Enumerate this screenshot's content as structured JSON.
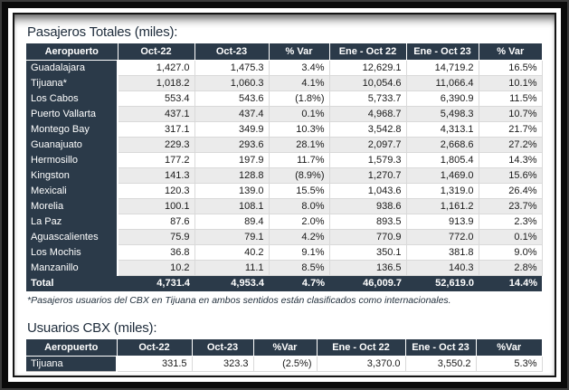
{
  "passengers_table": {
    "title": "Pasajeros Totales (miles):",
    "headers": [
      "Aeropuerto",
      "Oct-22",
      "Oct-23",
      "% Var",
      "Ene - Oct 22",
      "Ene - Oct 23",
      "% Var"
    ],
    "rows": [
      [
        "Guadalajara",
        "1,427.0",
        "1,475.3",
        "3.4%",
        "12,629.1",
        "14,719.2",
        "16.5%"
      ],
      [
        "Tijuana*",
        "1,018.2",
        "1,060.3",
        "4.1%",
        "10,054.6",
        "11,066.4",
        "10.1%"
      ],
      [
        "Los Cabos",
        "553.4",
        "543.6",
        "(1.8%)",
        "5,733.7",
        "6,390.9",
        "11.5%"
      ],
      [
        "Puerto Vallarta",
        "437.1",
        "437.4",
        "0.1%",
        "4,968.7",
        "5,498.3",
        "10.7%"
      ],
      [
        "Montego Bay",
        "317.1",
        "349.9",
        "10.3%",
        "3,542.8",
        "4,313.1",
        "21.7%"
      ],
      [
        "Guanajuato",
        "229.3",
        "293.6",
        "28.1%",
        "2,097.7",
        "2,668.6",
        "27.2%"
      ],
      [
        "Hermosillo",
        "177.2",
        "197.9",
        "11.7%",
        "1,579.3",
        "1,805.4",
        "14.3%"
      ],
      [
        "Kingston",
        "141.3",
        "128.8",
        "(8.9%)",
        "1,270.7",
        "1,469.0",
        "15.6%"
      ],
      [
        "Mexicali",
        "120.3",
        "139.0",
        "15.5%",
        "1,043.6",
        "1,319.0",
        "26.4%"
      ],
      [
        "Morelia",
        "100.1",
        "108.1",
        "8.0%",
        "938.6",
        "1,161.2",
        "23.7%"
      ],
      [
        "La Paz",
        "87.6",
        "89.4",
        "2.0%",
        "893.5",
        "913.9",
        "2.3%"
      ],
      [
        "Aguascalientes",
        "75.9",
        "79.1",
        "4.2%",
        "770.9",
        "772.0",
        "0.1%"
      ],
      [
        "Los Mochis",
        "36.8",
        "40.2",
        "9.1%",
        "350.1",
        "381.8",
        "9.0%"
      ],
      [
        "Manzanillo",
        "10.2",
        "11.1",
        "8.5%",
        "136.5",
        "140.3",
        "2.8%"
      ]
    ],
    "total_row": [
      "Total",
      "4,731.4",
      "4,953.4",
      "4.7%",
      "46,009.7",
      "52,619.0",
      "14.4%"
    ],
    "footnote": "*Pasajeros usuarios del CBX en Tijuana en ambos sentidos están clasificados como internacionales."
  },
  "cbx_table": {
    "title": "Usuarios CBX (miles):",
    "headers": [
      "Aeropuerto",
      "Oct-22",
      "Oct-23",
      "%Var",
      "Ene - Oct 22",
      "Ene - Oct 23",
      "%Var"
    ],
    "rows": [
      [
        "Tijuana",
        "331.5",
        "323.3",
        "(2.5%)",
        "3,370.0",
        "3,550.2",
        "5.3%"
      ]
    ]
  },
  "colors": {
    "header_bg": "#2b3a49",
    "alt_row_bg": "#ebebeb",
    "cell_border": "#d9d9d9",
    "frame_border": "#000000"
  }
}
